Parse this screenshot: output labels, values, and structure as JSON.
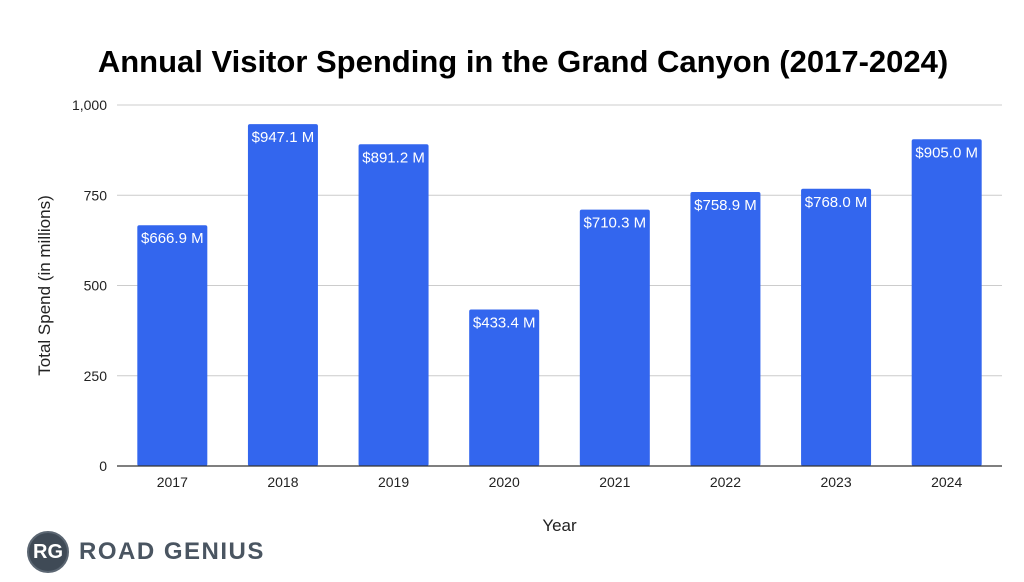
{
  "chart_data": {
    "type": "bar",
    "title": "Annual Visitor Spending in the Grand Canyon (2017-2024)",
    "xlabel": "Year",
    "ylabel": "Total Spend (in millions)",
    "categories": [
      "2017",
      "2018",
      "2019",
      "2020",
      "2021",
      "2022",
      "2023",
      "2024"
    ],
    "values": [
      666.9,
      947.1,
      891.2,
      433.4,
      710.3,
      758.9,
      768.0,
      905.0
    ],
    "data_labels": [
      "$666.9 M",
      "$947.1 M",
      "$891.2 M",
      "$433.4 M",
      "$710.3 M",
      "$758.9 M",
      "$768.0 M",
      "$905.0 M"
    ],
    "ylim": [
      0,
      1000
    ],
    "yticks": [
      0,
      250,
      500,
      750,
      1000
    ],
    "ytick_labels": [
      "0",
      "250",
      "500",
      "750",
      "1,000"
    ],
    "grid": true,
    "bar_color": "#3366ee"
  },
  "branding": {
    "logo_text": "RG",
    "name": "ROAD GENIUS"
  }
}
